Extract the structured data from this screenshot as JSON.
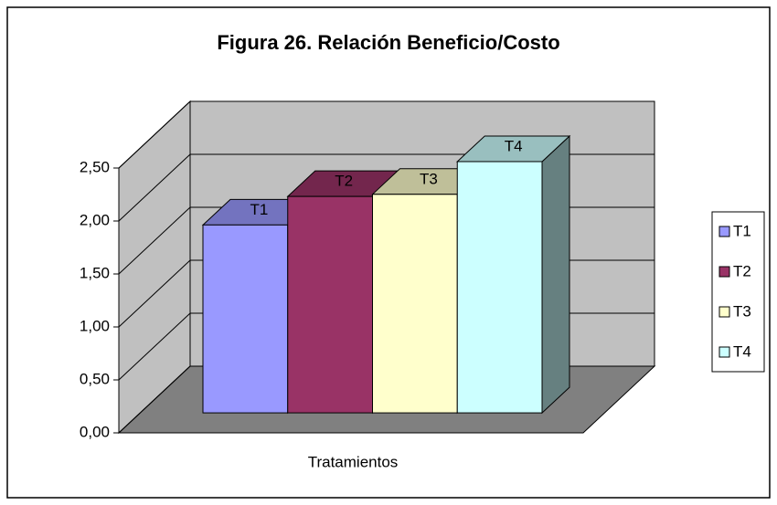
{
  "chart_data": {
    "type": "bar3d",
    "title": "Figura 26. Relación Beneficio/Costo",
    "categories": [
      "Tratamientos"
    ],
    "series": [
      {
        "name": "T1",
        "color": "#9999ff",
        "values": [
          1.78
        ]
      },
      {
        "name": "T2",
        "color": "#993366",
        "values": [
          2.05
        ]
      },
      {
        "name": "T3",
        "color": "#ffffcc",
        "values": [
          2.07
        ]
      },
      {
        "name": "T4",
        "color": "#ccffff",
        "values": [
          2.38
        ]
      }
    ],
    "ylim": [
      0,
      2.5
    ],
    "yticks": [
      {
        "value": 0,
        "label": "0,00"
      },
      {
        "value": 0.5,
        "label": "0,50"
      },
      {
        "value": 1,
        "label": "1,00"
      },
      {
        "value": 1.5,
        "label": "1,50"
      },
      {
        "value": 2,
        "label": "2,00"
      },
      {
        "value": 2.5,
        "label": "2,50"
      }
    ],
    "grid": true,
    "legend": "right"
  }
}
